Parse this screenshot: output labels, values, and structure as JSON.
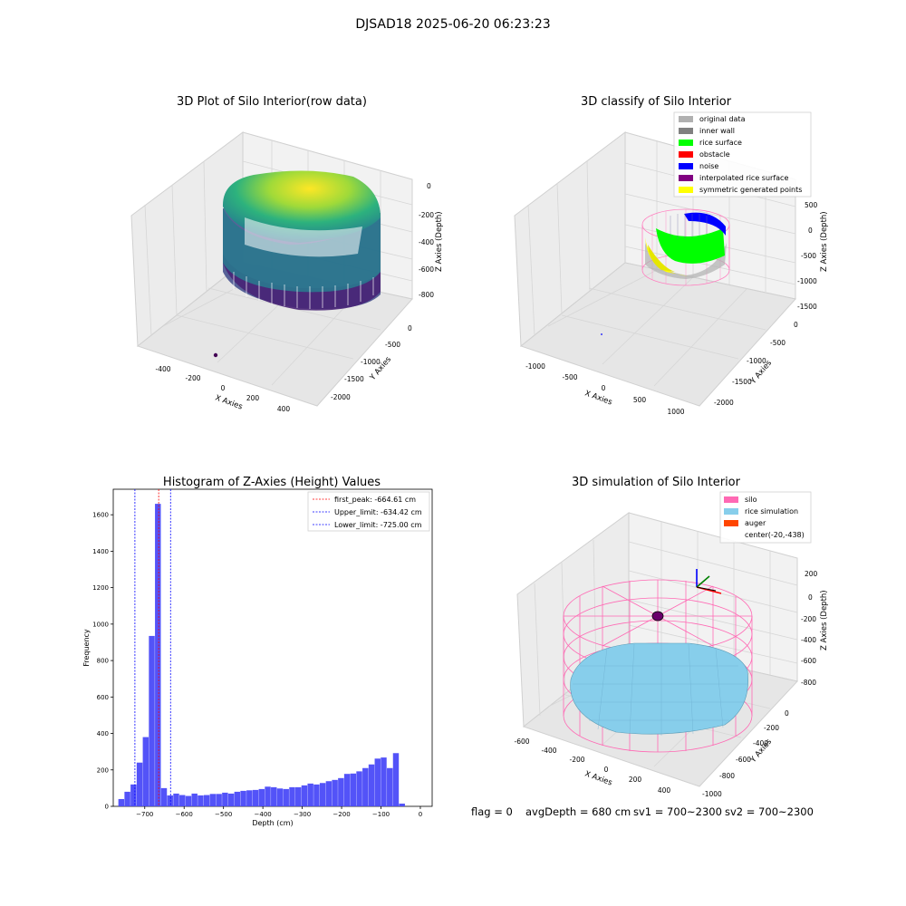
{
  "figure": {
    "suptitle": "DJSAD18 2025-06-20 06:23:23",
    "footer": {
      "flag": "flag = 0",
      "avg_depth": "avgDepth = 680 cm",
      "sv1": "sv1 = 700~2300",
      "sv2": "sv2 = 700~2300"
    }
  },
  "chart_data": [
    {
      "type": "scatter",
      "projection": "3d",
      "title": "3D Plot of Silo Interior(row data)",
      "xlabel": "X Axies",
      "ylabel": "Y Axies",
      "zlabel": "Z Axies (Depth)",
      "x_ticks": [
        "-400",
        "-200",
        "0",
        "200",
        "400"
      ],
      "y_ticks": [
        "0",
        "-500",
        "-1000",
        "-1500",
        "-2000"
      ],
      "z_ticks": [
        "0",
        "-200",
        "-400",
        "-600",
        "-800"
      ],
      "colormap": "viridis",
      "colors": {
        "low": "#440154",
        "mid": "#21918c",
        "high": "#fde725"
      }
    },
    {
      "type": "scatter",
      "projection": "3d",
      "title": "3D classify of Silo Interior",
      "xlabel": "X Axies",
      "ylabel": "Y Axies",
      "zlabel": "Z Axies (Depth)",
      "x_ticks": [
        "-1000",
        "-500",
        "0",
        "500",
        "1000"
      ],
      "y_ticks": [
        "0",
        "-500",
        "-1000",
        "-1500",
        "-2000"
      ],
      "z_ticks": [
        "500",
        "0",
        "-500",
        "-1000",
        "-1500"
      ],
      "legend_position": "top-right",
      "legend": [
        {
          "label": "original data",
          "color": "#b0b0b0"
        },
        {
          "label": "inner wall",
          "color": "#808080"
        },
        {
          "label": "rice surface",
          "color": "#00ff00"
        },
        {
          "label": "obstacle",
          "color": "#ff0000"
        },
        {
          "label": "noise",
          "color": "#0000ff"
        },
        {
          "label": "interpolated rice surface",
          "color": "#800080"
        },
        {
          "label": "symmetric generated points",
          "color": "#ffff00"
        }
      ]
    },
    {
      "type": "bar",
      "title": "Histogram of Z-Axies (Height) Values",
      "xlabel": "Depth (cm)",
      "ylabel": "Frequency",
      "xlim": [
        -780,
        30
      ],
      "ylim": [
        0,
        1740
      ],
      "x_ticks": [
        -700,
        -600,
        -500,
        -400,
        -300,
        -200,
        -100,
        0
      ],
      "y_ticks": [
        0,
        200,
        400,
        600,
        800,
        1000,
        1200,
        1400,
        1600
      ],
      "bar_color": "#4a4af8",
      "bin_start": -767,
      "bin_width": 15.5,
      "values": [
        40,
        80,
        120,
        240,
        380,
        935,
        1660,
        100,
        60,
        70,
        62,
        57,
        70,
        60,
        62,
        68,
        68,
        75,
        70,
        80,
        85,
        88,
        90,
        95,
        108,
        105,
        98,
        95,
        105,
        105,
        115,
        125,
        120,
        128,
        138,
        145,
        155,
        178,
        180,
        192,
        210,
        230,
        262,
        268,
        210,
        292,
        15
      ],
      "vlines": [
        {
          "label": "first_peak: -664.61 cm",
          "x": -664.61,
          "color": "#ff0000"
        },
        {
          "label": "Upper_limit: -634.42 cm",
          "x": -634.42,
          "color": "#0000ff"
        },
        {
          "label": "Lower_limit: -725.00 cm",
          "x": -725.0,
          "color": "#0000ff"
        }
      ],
      "legend_position": "top-right"
    },
    {
      "type": "scatter",
      "projection": "3d",
      "title": "3D simulation of Silo Interior",
      "xlabel": "X Axies",
      "ylabel": "Y Axies",
      "zlabel": "Z Axies (Depth)",
      "x_ticks": [
        "-600",
        "-400",
        "-200",
        "0",
        "200",
        "400"
      ],
      "y_ticks": [
        "0",
        "-200",
        "-400",
        "-600",
        "-800",
        "-1000"
      ],
      "z_ticks": [
        "200",
        "0",
        "-200",
        "-400",
        "-600",
        "-800"
      ],
      "legend_position": "top-right",
      "legend": [
        {
          "label": "silo",
          "color": "#ff69b4"
        },
        {
          "label": "rice simulation",
          "color": "#87ceeb"
        },
        {
          "label": "auger",
          "color": "#ff4500"
        },
        {
          "label": "center(-20,-438)",
          "color": ""
        }
      ]
    }
  ]
}
